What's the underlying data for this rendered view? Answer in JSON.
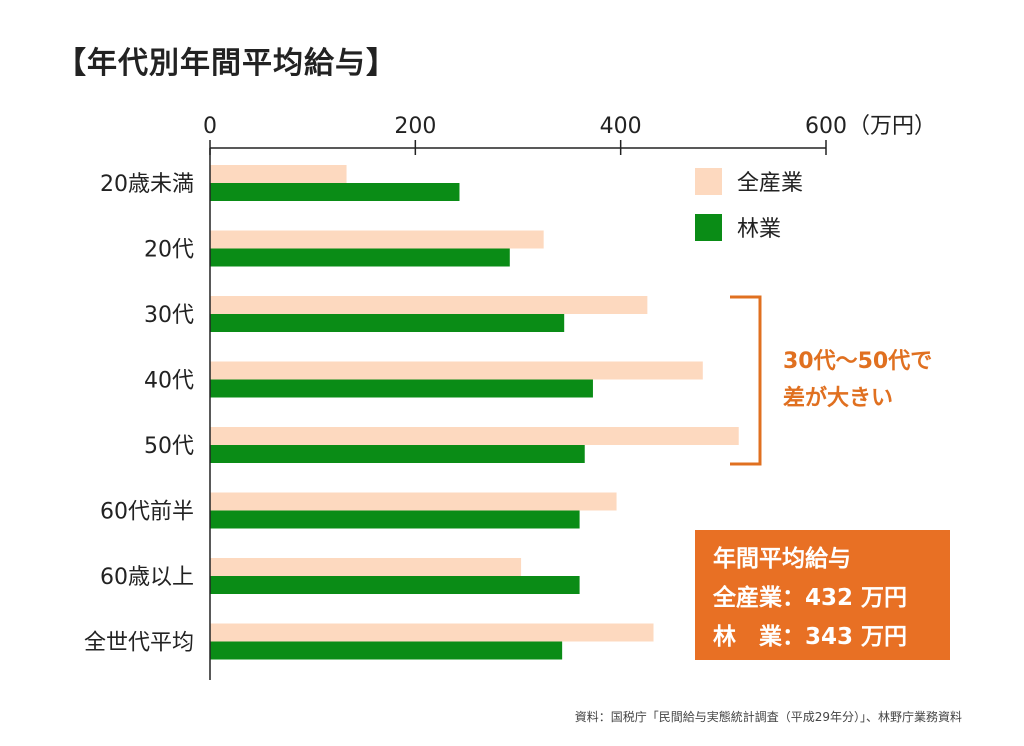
{
  "title": "【年代別年間平均給与】",
  "chart_data": {
    "type": "bar",
    "orientation": "horizontal",
    "categories": [
      "20歳未満",
      "20代",
      "30代",
      "40代",
      "50代",
      "60代前半",
      "60歳以上",
      "全世代平均"
    ],
    "series": [
      {
        "name": "全産業",
        "color": "#fdd9bf",
        "values": [
          133,
          325,
          426,
          480,
          515,
          396,
          303,
          432
        ]
      },
      {
        "name": "林業",
        "color": "#0a8c16",
        "values": [
          243,
          292,
          345,
          373,
          365,
          360,
          360,
          343
        ]
      }
    ],
    "xlim": [
      0,
      600
    ],
    "xticks": [
      0,
      200,
      400,
      600
    ],
    "xunit": "（万円）",
    "xaxis_position": "top",
    "legend_position": "top-right"
  },
  "annotation": {
    "line1": "30代〜50代で",
    "line2": "差が大きい",
    "color": "#e07020"
  },
  "summary": {
    "heading": "年間平均給与",
    "line1": "全産業：432 万円",
    "line2": "林　業：343 万円",
    "bg_color": "#e87024"
  },
  "source": "資料：国税庁「民間給与実態統計調査（平成29年分）」、林野庁業務資料"
}
